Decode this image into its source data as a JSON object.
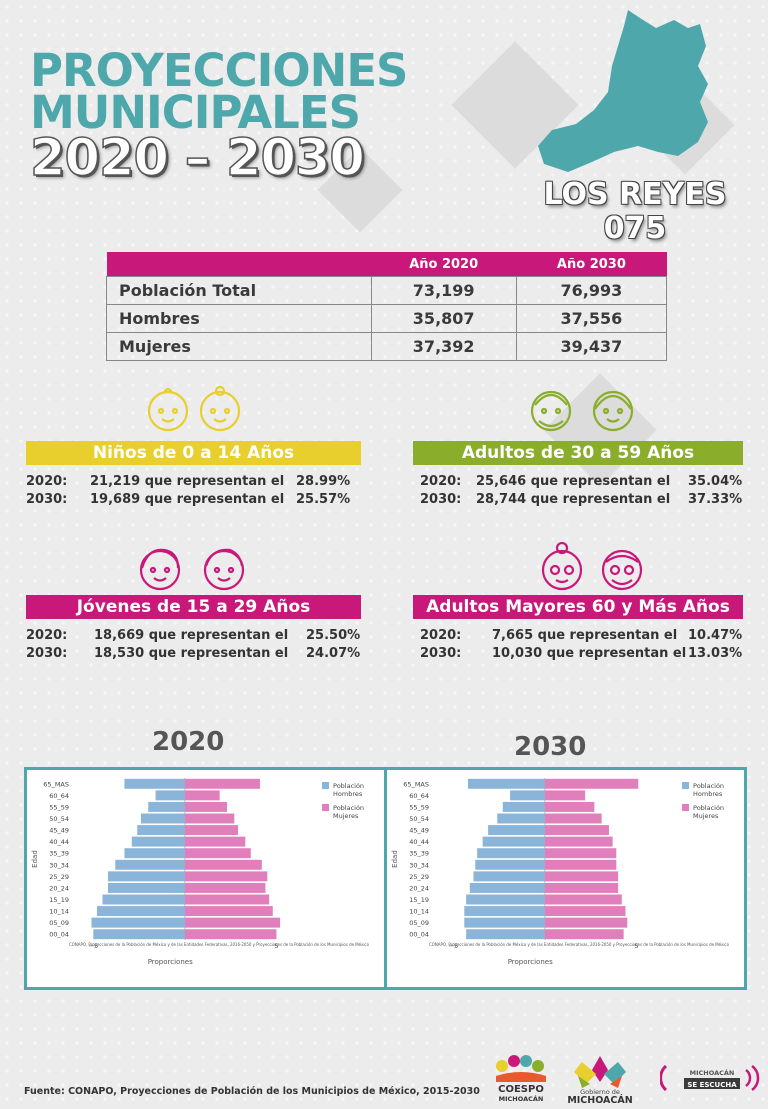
{
  "header": {
    "title_line1": "PROYECCIONES",
    "title_line2": "MUNICIPALES",
    "title_line3": "2020 – 2030",
    "municipality": "LOS REYES",
    "code": "075"
  },
  "colors": {
    "teal": "#4ea8ab",
    "magenta": "#c8197b",
    "yellow": "#e8cf2e",
    "green": "#8aae2b",
    "men": "#8bb4d9",
    "women": "#e17fbd"
  },
  "population_table": {
    "col_2020": "Año 2020",
    "col_2030": "Año 2030",
    "rows": [
      {
        "label": "Población Total",
        "y2020": "73,199",
        "y2030": "76,993"
      },
      {
        "label": "Hombres",
        "y2020": "35,807",
        "y2030": "37,556"
      },
      {
        "label": "Mujeres",
        "y2020": "37,392",
        "y2030": "39,437"
      }
    ]
  },
  "groups": {
    "ninos": {
      "title": "Niños de 0 a 14 Años",
      "l1": "2020:",
      "v1": "21,219 que representan el",
      "p1": "28.99%",
      "l2": "2030:",
      "v2": "19,689 que representan el",
      "p2": "25.57%"
    },
    "adultos": {
      "title": "Adultos de 30 a 59 Años",
      "l1": "2020:",
      "v1": "25,646 que representan el",
      "p1": "35.04%",
      "l2": "2030:",
      "v2": "28,744 que representan el",
      "p2": "37.33%"
    },
    "jovenes": {
      "title": "Jóvenes de 15 a 29 Años",
      "l1": "2020:",
      "v1": "18,669 que representan el",
      "p1": "25.50%",
      "l2": "2030:",
      "v2": "18,530 que representan el",
      "p2": "24.07%"
    },
    "mayores": {
      "title": "Adultos Mayores  60 y Más Años",
      "l1": "2020:",
      "v1": "7,665 que representan el",
      "p1": "10.47%",
      "l2": "2030:",
      "v2": "10,030 que representan el",
      "p2": "13.03%"
    }
  },
  "chart_titles": {
    "left": "2020",
    "right": "2030"
  },
  "chart_data": [
    {
      "type": "bar",
      "year": "2020",
      "orientation": "horizontal",
      "categories": [
        "00_04",
        "05_09",
        "10_14",
        "15_19",
        "20_24",
        "25_29",
        "30_34",
        "35_39",
        "40_44",
        "45_49",
        "50_54",
        "55_59",
        "60_64",
        "65_MAS"
      ],
      "series": [
        {
          "name": "Población Hombres",
          "values": [
            -5.0,
            -5.1,
            -4.8,
            -4.5,
            -4.2,
            -4.2,
            -3.8,
            -3.3,
            -2.9,
            -2.6,
            -2.4,
            -2.0,
            -1.6,
            -3.3
          ]
        },
        {
          "name": "Población Mujeres",
          "values": [
            5.0,
            5.2,
            4.8,
            4.6,
            4.4,
            4.5,
            4.2,
            3.6,
            3.3,
            2.9,
            2.7,
            2.3,
            1.9,
            4.1
          ]
        }
      ],
      "ylabel": "Edad",
      "xlabel": "Proporciones",
      "xticks": [
        "−5",
        "5"
      ],
      "xlim": [
        -6,
        10.6
      ],
      "note": "CONAPO, Proyecciones de la Población de México y de las Entidades Federativas, 2016-2050 y Proyecciones de la Población de los Municipios de México"
    },
    {
      "type": "bar",
      "year": "2030",
      "orientation": "horizontal",
      "categories": [
        "00_04",
        "05_09",
        "10_14",
        "15_19",
        "20_24",
        "25_29",
        "30_34",
        "35_39",
        "40_44",
        "45_49",
        "50_54",
        "55_59",
        "60_64",
        "65_MAS"
      ],
      "series": [
        {
          "name": "Población Hombres",
          "values": [
            -4.3,
            -4.4,
            -4.4,
            -4.3,
            -4.1,
            -3.9,
            -3.8,
            -3.7,
            -3.4,
            -3.1,
            -2.6,
            -2.3,
            -1.9,
            -4.2
          ]
        },
        {
          "name": "Población Mujeres",
          "values": [
            4.3,
            4.5,
            4.4,
            4.2,
            4.0,
            4.0,
            3.9,
            3.9,
            3.7,
            3.5,
            3.1,
            2.7,
            2.2,
            5.1
          ]
        }
      ],
      "ylabel": "Edad",
      "xlabel": "Proporciones",
      "xticks": [
        "−5",
        "5"
      ],
      "xlim": [
        -6,
        10.6
      ],
      "note": "CONAPO, Proyecciones de la Población de México y de las Entidades Federativas, 2016-2050 y Proyecciones de la Población de los Municipios de México"
    }
  ],
  "footer": {
    "source": "Fuente: CONAPO, Proyecciones de Población de los Municipios de México, 2015-2030",
    "logo1_line1": "COESPO",
    "logo1_line2": "MICHOACÁN",
    "logo2_line1": "Gobierno de",
    "logo2_line2": "MICHOACÁN",
    "logo3_line1": "MICHOACÁN",
    "logo3_line2": "SE ESCUCHA"
  }
}
